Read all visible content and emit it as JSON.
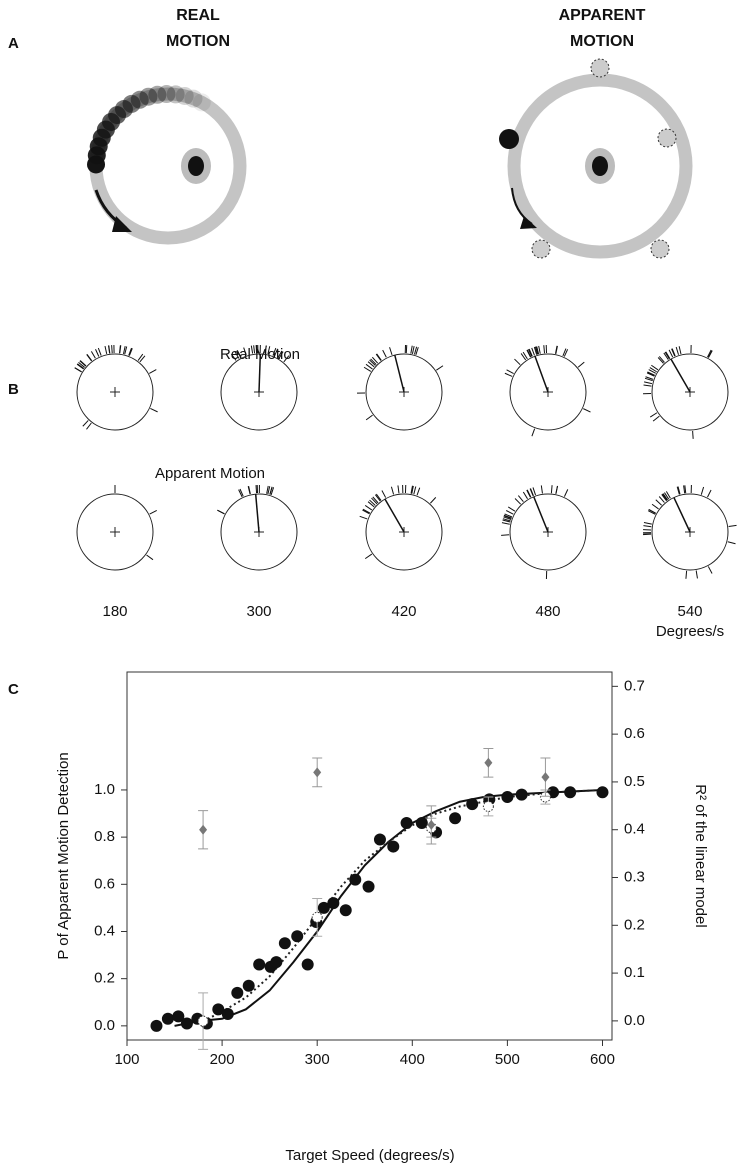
{
  "panel_a": {
    "label": "A",
    "left_title": [
      "REAL",
      "MOTION"
    ],
    "right_title": [
      "APPARENT",
      "MOTION"
    ]
  },
  "panel_b": {
    "label": "B",
    "row_titles": [
      "Real Motion",
      "Apparent Motion"
    ],
    "speeds": [
      180,
      300,
      420,
      480,
      540
    ],
    "unit": "Degrees/s"
  },
  "chart_data": {
    "type": "scatter",
    "panel_label": "C",
    "xlabel": "Target Speed (degrees/s)",
    "ylabel": "P of Apparent Motion Detection",
    "y2label": "R² of the linear model",
    "xlim": [
      100,
      610
    ],
    "xticks": [
      100,
      200,
      300,
      400,
      500,
      600
    ],
    "ylim": [
      -0.06,
      1.5
    ],
    "yticks": [
      {
        "value": 0,
        "label": "0.0"
      },
      {
        "value": 0.2,
        "label": "0.2"
      },
      {
        "value": 0.4,
        "label": "0.4"
      },
      {
        "value": 0.6,
        "label": "0.6"
      },
      {
        "value": 0.8,
        "label": "0.8"
      },
      {
        "value": 1,
        "label": "1.0"
      }
    ],
    "y2lim": [
      -0.04,
      0.73
    ],
    "y2ticks": [
      {
        "value": 0,
        "label": "0.0"
      },
      {
        "value": 0.1,
        "label": "0.1"
      },
      {
        "value": 0.2,
        "label": "0.2"
      },
      {
        "value": 0.3,
        "label": "0.3"
      },
      {
        "value": 0.4,
        "label": "0.4"
      },
      {
        "value": 0.5,
        "label": "0.5"
      },
      {
        "value": 0.6,
        "label": "0.6"
      },
      {
        "value": 0.7,
        "label": "0.7"
      }
    ],
    "series": [
      {
        "style": "solid-line",
        "color": "#111111",
        "x": [
          150,
          175,
          200,
          225,
          250,
          275,
          300,
          325,
          350,
          375,
          400,
          425,
          450,
          475,
          500,
          550,
          600
        ],
        "values": [
          0,
          0.02,
          0.03,
          0.07,
          0.15,
          0.27,
          0.4,
          0.55,
          0.68,
          0.78,
          0.86,
          0.91,
          0.95,
          0.97,
          0.98,
          0.99,
          1
        ]
      },
      {
        "style": "dotted-line",
        "color": "#222222",
        "x": [
          180,
          200,
          225,
          250,
          275,
          300,
          325,
          350,
          375,
          400,
          425,
          450,
          475,
          500,
          550,
          600
        ],
        "values": [
          0.02,
          0.06,
          0.12,
          0.21,
          0.33,
          0.46,
          0.59,
          0.7,
          0.78,
          0.85,
          0.9,
          0.93,
          0.95,
          0.97,
          0.99,
          1
        ]
      },
      {
        "style": "filled-dot",
        "color": "#111111",
        "x": [
          131,
          143,
          154,
          163,
          174,
          184,
          196,
          206,
          216,
          228,
          239,
          251,
          257,
          266,
          279,
          290,
          299,
          307,
          317,
          330,
          340,
          354,
          366,
          380,
          394,
          410,
          425,
          445,
          463,
          481,
          500,
          515,
          548,
          566,
          600
        ],
        "values": [
          0,
          0.03,
          0.04,
          0.01,
          0.03,
          0.01,
          0.07,
          0.05,
          0.14,
          0.17,
          0.26,
          0.25,
          0.27,
          0.35,
          0.38,
          0.26,
          0.44,
          0.5,
          0.52,
          0.49,
          0.62,
          0.59,
          0.79,
          0.76,
          0.86,
          0.86,
          0.82,
          0.88,
          0.94,
          0.96,
          0.97,
          0.98,
          0.99,
          0.99,
          0.99
        ]
      },
      {
        "style": "open-dot",
        "color": "#aaaaaa",
        "x": [
          180,
          300,
          420,
          480,
          540
        ],
        "values": [
          0.02,
          0.46,
          0.84,
          0.93,
          0.97
        ],
        "errors": [
          0.12,
          0.08,
          0.04,
          0.04,
          0.03
        ]
      },
      {
        "style": "diamond",
        "color": "#777777",
        "axis": "y2",
        "x": [
          180,
          300,
          420,
          480,
          540
        ],
        "values": [
          0.4,
          0.52,
          0.41,
          0.54,
          0.51
        ],
        "errors": [
          0.04,
          0.03,
          0.04,
          0.03,
          0.04
        ]
      }
    ]
  }
}
